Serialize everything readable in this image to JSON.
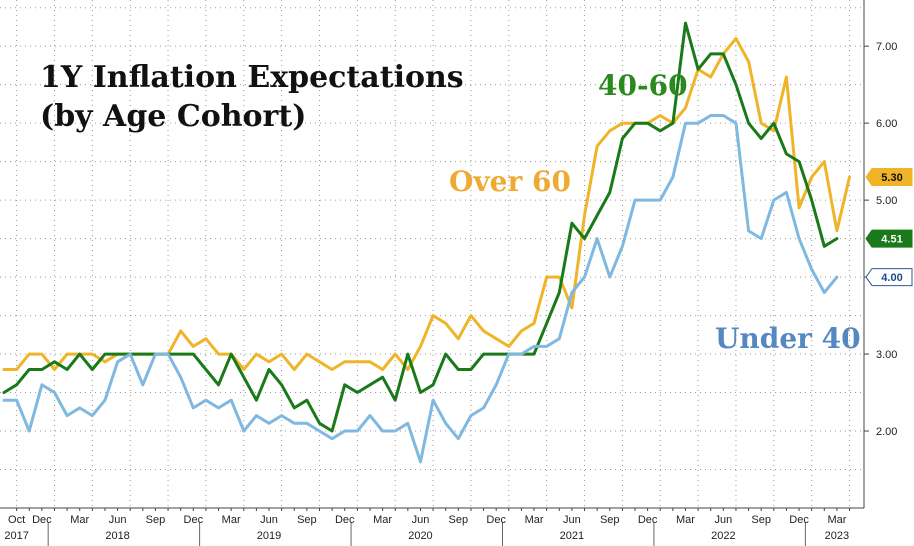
{
  "chart_data": {
    "type": "line",
    "title": [
      "1Y Inflation Expectations",
      "(by Age Cohort)"
    ],
    "ylim": [
      1.0,
      7.6
    ],
    "yticks": [
      2.0,
      3.0,
      4.0,
      5.0,
      6.0,
      7.0
    ],
    "ytick_labels": [
      "2.00",
      "3.00",
      "4.00",
      "5.00",
      "6.00",
      "7.00"
    ],
    "start": {
      "year": 2017,
      "month": 9
    },
    "x_end_month_index": 67,
    "xtick_labels": [
      {
        "label": "Oct",
        "i": 1
      },
      {
        "label": "Dec",
        "i": 3
      },
      {
        "label": "Mar",
        "i": 6
      },
      {
        "label": "Jun",
        "i": 9
      },
      {
        "label": "Sep",
        "i": 12
      },
      {
        "label": "Dec",
        "i": 15
      },
      {
        "label": "Mar",
        "i": 18
      },
      {
        "label": "Jun",
        "i": 21
      },
      {
        "label": "Sep",
        "i": 24
      },
      {
        "label": "Dec",
        "i": 27
      },
      {
        "label": "Mar",
        "i": 30
      },
      {
        "label": "Jun",
        "i": 33
      },
      {
        "label": "Sep",
        "i": 36
      },
      {
        "label": "Dec",
        "i": 39
      },
      {
        "label": "Mar",
        "i": 42
      },
      {
        "label": "Jun",
        "i": 45
      },
      {
        "label": "Sep",
        "i": 48
      },
      {
        "label": "Dec",
        "i": 51
      },
      {
        "label": "Mar",
        "i": 54
      },
      {
        "label": "Jun",
        "i": 57
      },
      {
        "label": "Sep",
        "i": 60
      },
      {
        "label": "Dec",
        "i": 63
      },
      {
        "label": "Mar",
        "i": 66
      }
    ],
    "year_labels": [
      {
        "label": "2017",
        "i": 1
      },
      {
        "label": "2018",
        "i": 9
      },
      {
        "label": "2019",
        "i": 21
      },
      {
        "label": "2020",
        "i": 33
      },
      {
        "label": "2021",
        "i": 45
      },
      {
        "label": "2022",
        "i": 57
      },
      {
        "label": "2023",
        "i": 66
      }
    ],
    "year_separators": [
      4,
      16,
      28,
      40,
      52,
      64
    ],
    "series": [
      {
        "name": "Over 60",
        "color": "#f0b429",
        "label_color": "#eeaa33",
        "last_label": "5.30",
        "values": [
          2.8,
          2.8,
          3.0,
          3.0,
          2.8,
          3.0,
          3.0,
          3.0,
          2.9,
          3.0,
          3.0,
          3.0,
          3.0,
          3.0,
          3.3,
          3.1,
          3.2,
          3.0,
          3.0,
          2.8,
          3.0,
          2.9,
          3.0,
          2.8,
          3.0,
          2.9,
          2.8,
          2.9,
          2.9,
          2.9,
          2.8,
          3.0,
          2.8,
          3.1,
          3.5,
          3.4,
          3.2,
          3.5,
          3.3,
          3.2,
          3.1,
          3.3,
          3.4,
          4.0,
          4.0,
          3.6,
          4.8,
          5.7,
          5.9,
          6.0,
          6.0,
          6.0,
          6.1,
          6.0,
          6.2,
          6.7,
          6.6,
          6.9,
          7.1,
          6.8,
          6.0,
          5.9,
          6.6,
          4.9,
          5.3,
          5.5,
          4.6,
          5.3
        ]
      },
      {
        "name": "40-60",
        "color": "#1a7a1a",
        "label_color": "#2a8a1e",
        "last_label": "4.51",
        "values": [
          2.5,
          2.6,
          2.8,
          2.8,
          2.9,
          2.8,
          3.0,
          2.8,
          3.0,
          3.0,
          3.0,
          3.0,
          3.0,
          3.0,
          3.0,
          3.0,
          2.8,
          2.6,
          3.0,
          2.7,
          2.4,
          2.8,
          2.6,
          2.3,
          2.4,
          2.1,
          2.0,
          2.6,
          2.5,
          2.6,
          2.7,
          2.4,
          3.0,
          2.5,
          2.6,
          3.0,
          2.8,
          2.8,
          3.0,
          3.0,
          3.0,
          3.0,
          3.0,
          3.4,
          3.8,
          4.7,
          4.5,
          4.8,
          5.1,
          5.8,
          6.0,
          6.0,
          5.9,
          6.0,
          7.3,
          6.7,
          6.9,
          6.9,
          6.5,
          6.0,
          5.8,
          6.0,
          5.6,
          5.5,
          5.0,
          4.4,
          4.5
        ]
      },
      {
        "name": "Under 40",
        "color": "#7fb8e0",
        "label_color": "#5588c0",
        "last_label": "4.00",
        "values": [
          2.4,
          2.4,
          2.0,
          2.6,
          2.5,
          2.2,
          2.3,
          2.2,
          2.4,
          2.9,
          3.0,
          2.6,
          3.0,
          3.0,
          2.7,
          2.3,
          2.4,
          2.3,
          2.4,
          2.0,
          2.2,
          2.1,
          2.2,
          2.1,
          2.1,
          2.0,
          1.9,
          2.0,
          2.0,
          2.2,
          2.0,
          2.0,
          2.1,
          1.6,
          2.4,
          2.1,
          1.9,
          2.2,
          2.3,
          2.6,
          3.0,
          3.0,
          3.1,
          3.1,
          3.2,
          3.8,
          4.0,
          4.5,
          4.0,
          4.4,
          5.0,
          5.0,
          5.0,
          5.3,
          6.0,
          6.0,
          6.1,
          6.1,
          6.0,
          4.6,
          4.5,
          5.0,
          5.1,
          4.5,
          4.1,
          3.8,
          4.0
        ]
      }
    ]
  }
}
